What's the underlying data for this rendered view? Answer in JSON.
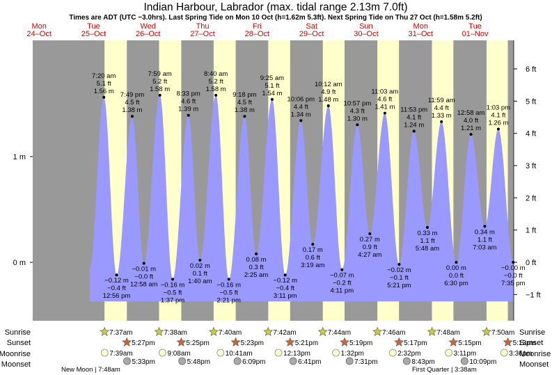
{
  "chart_data": {
    "type": "area",
    "title": "Indian Harbour, Labrador (max. tidal range 2.13m 7.0ft)",
    "subtitle": "Times are ADT (UTC −3.0hrs). Last Spring Tide on Mon 10 Oct (h=1.62m 5.3ft). Next Spring Tide on Thu 27 Oct (h=1.58m 5.2ft)",
    "days": [
      {
        "dow": "Mon",
        "date": "24–Oct"
      },
      {
        "dow": "Tue",
        "date": "25–Oct"
      },
      {
        "dow": "Wed",
        "date": "26–Oct"
      },
      {
        "dow": "Thu",
        "date": "27–Oct"
      },
      {
        "dow": "Fri",
        "date": "28–Oct"
      },
      {
        "dow": "Sat",
        "date": "29–Oct"
      },
      {
        "dow": "Sun",
        "date": "30–Oct"
      },
      {
        "dow": "Mon",
        "date": "31–Oct"
      },
      {
        "dow": "Tue",
        "date": "01–Nov"
      }
    ],
    "y_left_ticks": [
      {
        "v": 0,
        "label": "0 m"
      },
      {
        "v": 1,
        "label": "1 m"
      }
    ],
    "y_right_ticks": [
      {
        "ft": 6,
        "label": "6 ft"
      },
      {
        "ft": 5,
        "label": "5 ft"
      },
      {
        "ft": 4,
        "label": "4 ft"
      },
      {
        "ft": 3,
        "label": "3 ft"
      },
      {
        "ft": 2,
        "label": "2 ft"
      },
      {
        "ft": 1,
        "label": "1 ft"
      },
      {
        "ft": 0,
        "label": "0 ft"
      },
      {
        "ft": -1,
        "label": "−1 ft"
      }
    ],
    "ylim_m": [
      -0.37,
      1.95
    ],
    "tides": [
      {
        "t": "2022-10-25T07:20",
        "h": 1.56,
        "type": "high",
        "time": "7:20 am",
        "ft": "5.1 ft",
        "m": "1.56 m"
      },
      {
        "t": "2022-10-25T12:56",
        "h": -0.12,
        "type": "low",
        "time": "12:56 pm",
        "ft": "−0.4 ft",
        "m": "−0.12 m"
      },
      {
        "t": "2022-10-25T19:49",
        "h": 1.38,
        "type": "high",
        "time": "7:49 pm",
        "ft": "4.5 ft",
        "m": "1.38 m"
      },
      {
        "t": "2022-10-26T00:58",
        "h": -0.01,
        "type": "low",
        "time": "12:58 am",
        "ft": "−0.0 ft",
        "m": "−0.01 m"
      },
      {
        "t": "2022-10-26T07:59",
        "h": 1.58,
        "type": "high",
        "time": "7:59 am",
        "ft": "5.2 ft",
        "m": "1.58 m"
      },
      {
        "t": "2022-10-26T13:37",
        "h": -0.16,
        "type": "low",
        "time": "1:37 pm",
        "ft": "−0.5 ft",
        "m": "−0.16 m"
      },
      {
        "t": "2022-10-26T20:33",
        "h": 1.39,
        "type": "high",
        "time": "8:33 pm",
        "ft": "4.6 ft",
        "m": "1.39 m"
      },
      {
        "t": "2022-10-27T01:40",
        "h": 0.02,
        "type": "low",
        "time": "1:40 am",
        "ft": "0.1 ft",
        "m": "0.02 m"
      },
      {
        "t": "2022-10-27T08:40",
        "h": 1.58,
        "type": "high",
        "time": "8:40 am",
        "ft": "5.2 ft",
        "m": "1.58 m"
      },
      {
        "t": "2022-10-27T14:21",
        "h": -0.16,
        "type": "low",
        "time": "2:21 pm",
        "ft": "−0.5 ft",
        "m": "−0.16 m"
      },
      {
        "t": "2022-10-27T21:18",
        "h": 1.38,
        "type": "high",
        "time": "9:18 pm",
        "ft": "4.5 ft",
        "m": "1.38 m"
      },
      {
        "t": "2022-10-28T02:25",
        "h": 0.08,
        "type": "low",
        "time": "2:25 am",
        "ft": "0.3 ft",
        "m": "0.08 m"
      },
      {
        "t": "2022-10-28T09:25",
        "h": 1.54,
        "type": "high",
        "time": "9:25 am",
        "ft": "5.1 ft",
        "m": "1.54 m"
      },
      {
        "t": "2022-10-28T15:11",
        "h": -0.12,
        "type": "low",
        "time": "3:11 pm",
        "ft": "−0.4 ft",
        "m": "−0.12 m"
      },
      {
        "t": "2022-10-28T22:06",
        "h": 1.34,
        "type": "high",
        "time": "10:06 pm",
        "ft": "4.4 ft",
        "m": "1.34 m"
      },
      {
        "t": "2022-10-29T03:19",
        "h": 0.17,
        "type": "low",
        "time": "3:19 am",
        "ft": "0.6 ft",
        "m": "0.17 m"
      },
      {
        "t": "2022-10-29T10:12",
        "h": 1.48,
        "type": "high",
        "time": "10:12 am",
        "ft": "4.9 ft",
        "m": "1.48 m"
      },
      {
        "t": "2022-10-29T16:11",
        "h": -0.07,
        "type": "low",
        "time": "4:11 pm",
        "ft": "−0.2 ft",
        "m": "−0.07 m"
      },
      {
        "t": "2022-10-29T22:57",
        "h": 1.3,
        "type": "high",
        "time": "10:57 pm",
        "ft": "4.3 ft",
        "m": "1.30 m"
      },
      {
        "t": "2022-10-30T04:27",
        "h": 0.27,
        "type": "low",
        "time": "4:27 am",
        "ft": "0.9 ft",
        "m": "0.27 m"
      },
      {
        "t": "2022-10-30T11:03",
        "h": 1.41,
        "type": "high",
        "time": "11:03 am",
        "ft": "4.6 ft",
        "m": "1.41 m"
      },
      {
        "t": "2022-10-30T17:21",
        "h": -0.02,
        "type": "low",
        "time": "5:21 pm",
        "ft": "−0.1 ft",
        "m": "−0.02 m"
      },
      {
        "t": "2022-10-30T23:53",
        "h": 1.24,
        "type": "high",
        "time": "11:53 pm",
        "ft": "4.1 ft",
        "m": "1.24 m"
      },
      {
        "t": "2022-10-31T05:48",
        "h": 0.33,
        "type": "low",
        "time": "5:48 am",
        "ft": "1.1 ft",
        "m": "0.33 m"
      },
      {
        "t": "2022-10-31T11:59",
        "h": 1.33,
        "type": "high",
        "time": "11:59 am",
        "ft": "4.4 ft",
        "m": "1.33 m"
      },
      {
        "t": "2022-10-31T18:30",
        "h": 0.0,
        "type": "low",
        "time": "6:30 pm",
        "ft": "0.0 ft",
        "m": "0.00 m"
      },
      {
        "t": "2022-11-01T00:58",
        "h": 1.21,
        "type": "high",
        "time": "12:58 am",
        "ft": "4.0 ft",
        "m": "1.21 m"
      },
      {
        "t": "2022-11-01T07:03",
        "h": 0.34,
        "type": "low",
        "time": "7:03 am",
        "ft": "1.1 ft",
        "m": "0.34 m"
      },
      {
        "t": "2022-11-01T13:03",
        "h": 1.26,
        "type": "high",
        "time": "1:03 pm",
        "ft": "4.1 ft",
        "m": "1.26 m"
      },
      {
        "t": "2022-11-01T19:35",
        "h": -0.0,
        "type": "low",
        "time": "7:35 pm",
        "ft": "−0.0 ft",
        "m": "−0.00 m"
      }
    ],
    "sun": [
      {
        "rise": "2022-10-25T07:37",
        "set": "2022-10-25T17:27",
        "rise_label": "7:37am",
        "set_label": "5:27pm"
      },
      {
        "rise": "2022-10-26T07:38",
        "set": "2022-10-26T17:25",
        "rise_label": "7:38am",
        "set_label": "5:25pm"
      },
      {
        "rise": "2022-10-27T07:40",
        "set": "2022-10-27T17:23",
        "rise_label": "7:40am",
        "set_label": "5:23pm"
      },
      {
        "rise": "2022-10-28T07:42",
        "set": "2022-10-28T17:21",
        "rise_label": "7:42am",
        "set_label": "5:21pm"
      },
      {
        "rise": "2022-10-29T07:44",
        "set": "2022-10-29T17:19",
        "rise_label": "7:44am",
        "set_label": "5:19pm"
      },
      {
        "rise": "2022-10-30T07:46",
        "set": "2022-10-30T17:17",
        "rise_label": "7:46am",
        "set_label": "5:17pm"
      },
      {
        "rise": "2022-10-31T07:48",
        "set": "2022-10-31T17:15",
        "rise_label": "7:48am",
        "set_label": "5:15pm"
      },
      {
        "rise": "2022-11-01T07:50",
        "set": "2022-11-01T17:13",
        "rise_label": "7:50am",
        "set_label": "5:13pm"
      }
    ],
    "moonrise": [
      {
        "t": "2022-10-25T07:39",
        "label": "7:39am"
      },
      {
        "t": "2022-10-26T09:08",
        "label": "9:08am"
      },
      {
        "t": "2022-10-27T10:41",
        "label": "10:41am"
      },
      {
        "t": "2022-10-28T12:13",
        "label": "12:13pm"
      },
      {
        "t": "2022-10-29T13:32",
        "label": "1:32pm"
      },
      {
        "t": "2022-10-30T14:32",
        "label": "2:32pm"
      },
      {
        "t": "2022-10-31T15:11",
        "label": "3:11pm"
      },
      {
        "t": "2022-11-01T15:36",
        "label": "3:36pm"
      }
    ],
    "moonset": [
      {
        "t": "2022-10-25T17:33",
        "label": "5:33pm"
      },
      {
        "t": "2022-10-26T17:48",
        "label": "5:48pm"
      },
      {
        "t": "2022-10-27T18:09",
        "label": "6:09pm"
      },
      {
        "t": "2022-10-28T18:41",
        "label": "6:41pm"
      },
      {
        "t": "2022-10-29T19:31",
        "label": "7:31pm"
      },
      {
        "t": "2022-10-30T20:43",
        "label": "8:43pm"
      },
      {
        "t": "2022-10-31T22:09",
        "label": "10:09pm"
      }
    ],
    "moon_phases": [
      {
        "label": "New Moon | 7:48am"
      },
      {
        "label": "First Quarter | 3:38am"
      }
    ],
    "row_labels": {
      "sunrise": "Sunrise",
      "sunset": "Sunset",
      "moonrise": "Moonrise",
      "moonset": "Moonset"
    },
    "colors": {
      "night": "#999999",
      "day": "#ffffcc",
      "tide": "#9999ff",
      "sunrise_star": "#cccc33",
      "sunset_star": "#cc6633",
      "moonrise": "#ffffcc",
      "moonset": "#aaaaaa",
      "date": "#cc0000"
    }
  }
}
